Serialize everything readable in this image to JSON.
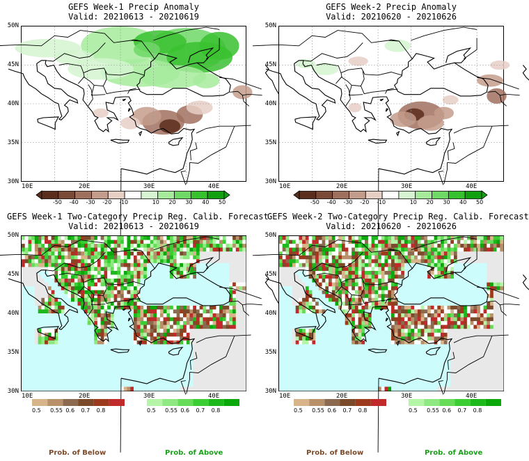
{
  "panels": [
    {
      "title": "GEFS Week-1 Precip Anomaly",
      "valid": "Valid: 20210613 - 20210619"
    },
    {
      "title": "GEFS Week-2 Precip Anomaly",
      "valid": "Valid: 20210620 - 20210626"
    },
    {
      "title": "GEFS Week-1 Two-Category Precip Reg. Calib. Forecast",
      "valid": "Valid: 20210613 - 20210619"
    },
    {
      "title": "GEFS Week-2 Two-Category Precip Reg. Calib. Forecast",
      "valid": "Valid: 20210620 - 20210626"
    }
  ],
  "lat_labels": [
    "50N",
    "45N",
    "40N",
    "35N",
    "30N"
  ],
  "lon_labels": [
    "10E",
    "20E",
    "30E",
    "40E"
  ],
  "anomaly_colorbar": {
    "labels": [
      "-50",
      "-40",
      "-30",
      "-20",
      "-10",
      "10",
      "20",
      "30",
      "40",
      "50"
    ],
    "colors": [
      "#5a2d1c",
      "#7b4a36",
      "#a0705e",
      "#c49c8c",
      "#e6cfc5",
      "#ffffff",
      "#d4f5d0",
      "#a6eb9c",
      "#6fd866",
      "#38c12f",
      "#12a010"
    ]
  },
  "below_colorbar": {
    "labels": [
      "0.5",
      "0.55",
      "0.6",
      "0.7",
      "0.8"
    ],
    "colors": [
      "#d8b48a",
      "#b8906a",
      "#8c6a4f",
      "#7a4a2a",
      "#9b3a1c",
      "#c02a2a"
    ]
  },
  "above_colorbar": {
    "labels": [
      "0.5",
      "0.55",
      "0.6",
      "0.7",
      "0.8"
    ],
    "colors": [
      "#b4f5a8",
      "#8eea80",
      "#66dc58",
      "#3ccc34",
      "#1cb81c",
      "#0aa80a"
    ]
  },
  "bottom_labels": {
    "below": "Prob. of Below",
    "above": "Prob. of Above"
  },
  "colors": {
    "sea": "#ccfcfc",
    "land_masked": "#e8e8e8",
    "below_text": "#7a4a2a",
    "above_text": "#1aa01a"
  }
}
